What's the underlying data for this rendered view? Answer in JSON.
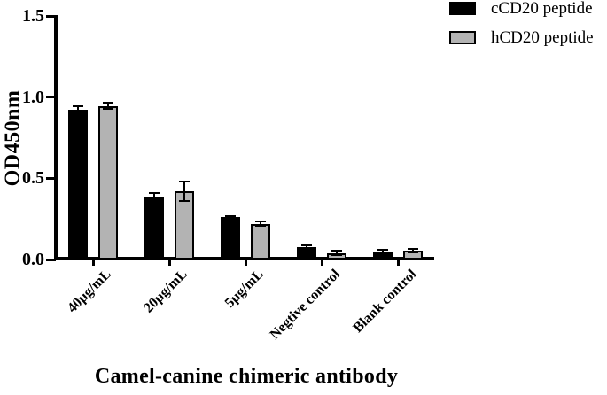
{
  "chart_data": {
    "type": "bar",
    "title": "",
    "xlabel": "Camel-canine chimeric antibody",
    "ylabel": "OD450nm",
    "categories": [
      "40µg/mL",
      "20µg/mL",
      "5µg/mL",
      "Negtive control",
      "Blank control"
    ],
    "series": [
      {
        "name": "cCD20 peptide",
        "color": "#000000",
        "values": [
          0.92,
          0.39,
          0.26,
          0.075,
          0.05
        ],
        "errors": [
          0.025,
          0.018,
          0.008,
          0.015,
          0.01
        ]
      },
      {
        "name": "hCD20 peptide",
        "color": "#b3b3b3",
        "values": [
          0.945,
          0.42,
          0.22,
          0.04,
          0.055
        ],
        "errors": [
          0.02,
          0.06,
          0.015,
          0.013,
          0.012
        ]
      }
    ],
    "ylim": [
      0,
      1.5
    ],
    "yticks": [
      0.0,
      0.5,
      1.0,
      1.5
    ],
    "ytick_format": "one-decimal",
    "grid": false,
    "legend_position": "top-right",
    "error_bars": true,
    "axis_color": "#000000",
    "background_color": "#ffffff"
  }
}
